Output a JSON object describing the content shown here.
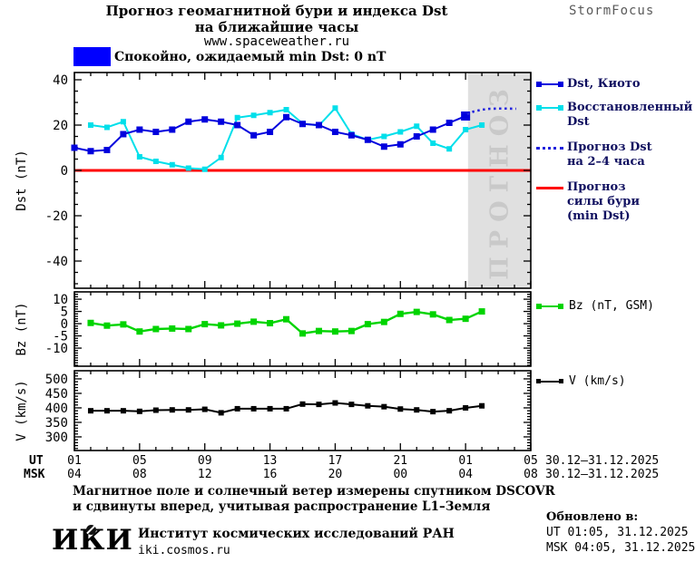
{
  "header": {
    "title_line1": "Прогноз геомагнитной бури и индекса Dst",
    "title_line2": "на ближайшие часы",
    "website": "www.spaceweather.ru",
    "brand": "StormFocus"
  },
  "status": {
    "text": "Спокойно, ожидаемый min Dst: 0 nT",
    "box_color": "#0000ff"
  },
  "chart_data": [
    {
      "type": "line",
      "name": "dst-forecast",
      "ylabel": "Dst (nT)",
      "ylim": [
        -52,
        43.2
      ],
      "yticks": [
        40,
        20,
        0,
        -20,
        -40
      ],
      "y_minor_step": 5,
      "xlim": [
        0,
        28
      ],
      "x_major_step": 4,
      "x_minor_step": 1,
      "hline": {
        "value": 0,
        "color": "#ff0000",
        "width": 3,
        "name": "Прогноз силы бури (min Dst)"
      },
      "band": {
        "from": 24.15,
        "to": 28,
        "fill": "#e0e0e0",
        "label": "ПРОГНОЗ",
        "label_color": "#c9c9c9"
      },
      "series": [
        {
          "name": "Восстановленный Dst",
          "color": "#00dfea",
          "marker": "square",
          "marker_size": 6,
          "line_width": 2,
          "x_start": 1,
          "x_step": 1,
          "values": [
            20,
            19,
            21.5,
            6,
            4,
            2.5,
            1,
            0.5,
            5.7,
            23.3,
            24.3,
            25.5,
            26.8,
            20.7,
            19.8,
            27.5,
            16,
            13.5,
            15,
            17,
            19.5,
            12,
            9.5,
            18,
            20
          ]
        },
        {
          "name": "Dst, Киото",
          "color": "#0000dd",
          "marker": "square",
          "marker_size": 7,
          "last_marker_size": 10,
          "line_width": 2,
          "x_start": 0,
          "x_step": 1,
          "values": [
            10,
            8.5,
            9,
            16,
            18,
            17,
            18,
            21.5,
            22.5,
            21.5,
            20,
            15.5,
            17,
            23.5,
            20.5,
            20,
            17,
            15.5,
            13.5,
            10.5,
            11.5,
            15,
            18,
            21,
            24
          ]
        },
        {
          "name": "Прогноз Dst на 2–4 часа",
          "color": "#2222dd",
          "style": "dotted",
          "line_width": 2.6,
          "x": [
            24.1,
            24.5,
            25,
            25.5,
            26,
            26.5,
            27.1
          ],
          "values": [
            24.8,
            26,
            26.8,
            27.2,
            27.3,
            27.3,
            27.2
          ]
        }
      ]
    },
    {
      "type": "line",
      "name": "bz",
      "ylabel": "Bz (nT)",
      "ylim": [
        -17.4,
        13
      ],
      "yticks": [
        10,
        5,
        0,
        -5,
        -10
      ],
      "y_minor_step": 1,
      "xlim": [
        0,
        28
      ],
      "x_major_step": 4,
      "x_minor_step": 1,
      "series": [
        {
          "name": "Bz (nT, GSM)",
          "color": "#00d400",
          "marker": "square",
          "marker_size": 7,
          "line_width": 2.4,
          "x_start": 1,
          "x_step": 1,
          "values": [
            0.3,
            -0.8,
            -0.3,
            -3.2,
            -2.2,
            -2,
            -2.2,
            -0.2,
            -0.7,
            0,
            0.8,
            0.2,
            1.8,
            -4,
            -3,
            -3.2,
            -3,
            -0.2,
            0.7,
            4,
            4.8,
            3.8,
            1.5,
            2,
            5
          ]
        }
      ]
    },
    {
      "type": "line",
      "name": "v",
      "ylabel": "V (km/s)",
      "ylim": [
        253,
        528
      ],
      "yticks": [
        500,
        450,
        400,
        350,
        300
      ],
      "y_minor_step": 10,
      "xlim": [
        0,
        28
      ],
      "x_major_step": 4,
      "x_minor_step": 1,
      "series": [
        {
          "name": "V (km/s)",
          "color": "#000000",
          "marker": "square",
          "marker_size": 6,
          "line_width": 2,
          "x_start": 1,
          "x_step": 1,
          "values": [
            390,
            390,
            390,
            388,
            392,
            393,
            393,
            395,
            383,
            397,
            397,
            397,
            397,
            413,
            412,
            417,
            412,
            407,
            404,
            396,
            393,
            387,
            390,
            400,
            407
          ]
        }
      ]
    }
  ],
  "legend_dst": {
    "item1": "Dst, Киото",
    "item2a": "Восстановленный",
    "item2b": "Dst",
    "item3a": "Прогноз Dst",
    "item3b": "на 2–4 часа",
    "item4a": "Прогноз",
    "item4b": "силы бури",
    "item4c": "(min Dst)"
  },
  "legend_bz": {
    "label": "Bz (nT, GSM)"
  },
  "legend_v": {
    "label": "V (km/s)"
  },
  "xaxis": {
    "ut_label": "UT",
    "msk_label": "MSK",
    "ut_hours": [
      "01",
      "05",
      "09",
      "13",
      "17",
      "21",
      "01",
      "05"
    ],
    "msk_hours": [
      "04",
      "08",
      "12",
      "16",
      "20",
      "00",
      "04",
      "08"
    ],
    "ut_date": "30.12–31.12.2025",
    "msk_date": "30.12–31.12.2025"
  },
  "footer": {
    "note_line1": "Магнитное поле и солнечный ветер измерены спутником DSCOVR",
    "note_line2": "и сдвинуты вперед, учитывая распространение L1–Земля",
    "logo": "ИКИ",
    "institute": "Институт космических исследований РАН",
    "institute_url": "iki.cosmos.ru",
    "updated_label": "Обновлено в:",
    "updated_ut": "UT  01:05, 31.12.2025",
    "updated_msk": "MSK 04:05, 31.12.2025"
  }
}
